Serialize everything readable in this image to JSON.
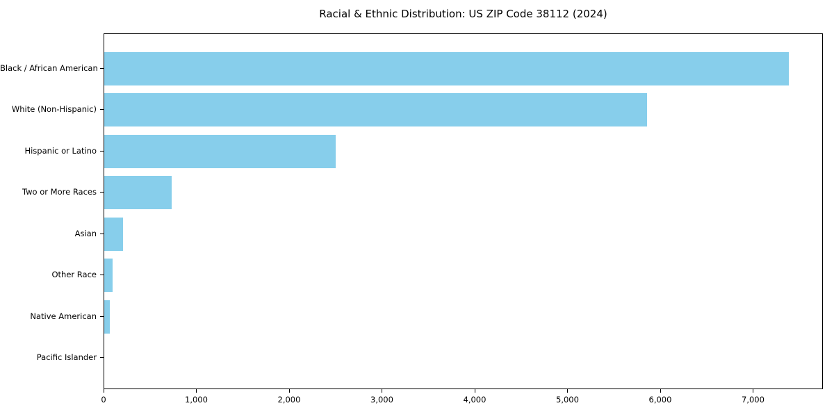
{
  "figure": {
    "title": "Racial & Ethnic Distribution: US ZIP Code 38112 (2024)",
    "background_color": "#ffffff",
    "bar_color": "#87ceeb",
    "axis_color": "#000000",
    "text_color": "#000000"
  },
  "chart_data": {
    "type": "bar",
    "orientation": "horizontal",
    "title": "Racial & Ethnic Distribution: US ZIP Code 38112 (2024)",
    "categories": [
      "Black / African American",
      "White (Non-Hispanic)",
      "Hispanic or Latino",
      "Two or More Races",
      "Asian",
      "Other Race",
      "Native American",
      "Pacific Islander"
    ],
    "values": [
      7390,
      5860,
      2500,
      730,
      200,
      90,
      60,
      0
    ],
    "xlabel": "",
    "ylabel": "",
    "xlim": [
      0,
      7753
    ],
    "x_ticks": [
      0,
      1000,
      2000,
      3000,
      4000,
      5000,
      6000,
      7000
    ],
    "x_tick_labels": [
      "0",
      "1,000",
      "2,000",
      "3,000",
      "4,000",
      "5,000",
      "6,000",
      "7,000"
    ],
    "grid": false,
    "legend": "none"
  }
}
